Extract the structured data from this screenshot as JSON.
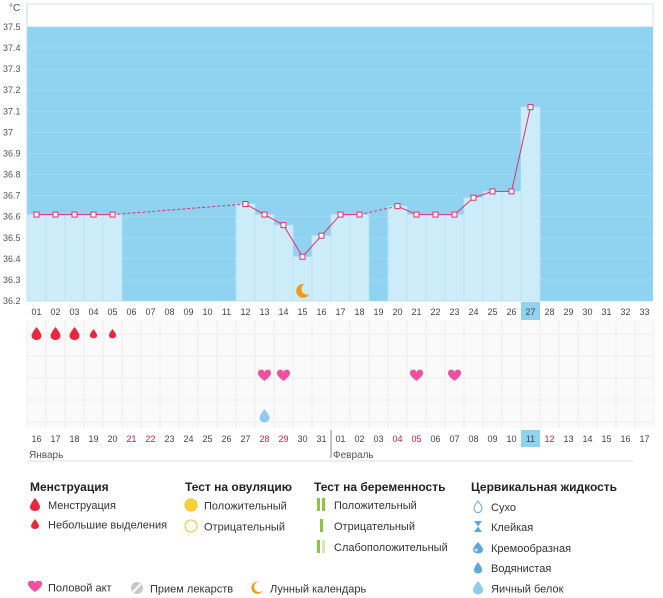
{
  "chart_data": {
    "type": "bar",
    "unit_label": "°C",
    "ylim": [
      36.2,
      37.5
    ],
    "yticks": [
      "36.2",
      "36.3",
      "36.4",
      "36.5",
      "36.6",
      "36.7",
      "36.8",
      "36.9",
      "37",
      "37.1",
      "37.2",
      "37.3",
      "37.4",
      "37.5"
    ],
    "cycle_days": [
      "01",
      "02",
      "03",
      "04",
      "05",
      "06",
      "07",
      "08",
      "09",
      "10",
      "11",
      "12",
      "13",
      "14",
      "15",
      "16",
      "17",
      "18",
      "19",
      "20",
      "21",
      "22",
      "23",
      "24",
      "25",
      "26",
      "27",
      "28",
      "29",
      "30",
      "31",
      "32",
      "33"
    ],
    "highlight_day": "27",
    "temperatures": [
      36.61,
      36.61,
      36.61,
      36.61,
      36.61,
      null,
      null,
      null,
      null,
      null,
      null,
      36.66,
      36.61,
      36.56,
      36.41,
      36.51,
      36.61,
      36.61,
      null,
      36.65,
      36.61,
      36.61,
      36.61,
      36.69,
      36.72,
      36.72,
      37.12,
      null,
      null,
      null,
      null,
      null,
      null
    ],
    "dates": [
      "16",
      "17",
      "18",
      "19",
      "20",
      "21",
      "22",
      "23",
      "24",
      "25",
      "26",
      "27",
      "28",
      "29",
      "30",
      "31",
      "01",
      "02",
      "03",
      "04",
      "05",
      "06",
      "07",
      "08",
      "09",
      "10",
      "11",
      "12",
      "13",
      "14",
      "15",
      "16",
      "17"
    ],
    "weekend_days": [
      5,
      6,
      12,
      13,
      19,
      20,
      26,
      27
    ],
    "today_index": 26,
    "month_labels": [
      {
        "index": 0,
        "label": "Январь"
      },
      {
        "index": 16,
        "label": "Февраль"
      }
    ],
    "menstruation_large": [
      0,
      1,
      2
    ],
    "menstruation_small": [
      3,
      4
    ],
    "intercourse": [
      12,
      13,
      20,
      22
    ],
    "egg_white": [
      12
    ],
    "lunar_day": 14
  },
  "legend": {
    "menstruation": {
      "title": "Менструация",
      "items": [
        "Менструация",
        "Небольшие выделения"
      ]
    },
    "ovulation": {
      "title": "Тест на овуляцию",
      "items": [
        "Положительный",
        "Отрицательный"
      ]
    },
    "pregnancy": {
      "title": "Тест на беременность",
      "items": [
        "Положительный",
        "Отрицательный",
        "Слабоположительный"
      ]
    },
    "cervical": {
      "title": "Цервикальная жидкость",
      "items": [
        "Сухо",
        "Клейкая",
        "Кремообразная",
        "Водянистая",
        "Яичный белок"
      ]
    },
    "bottom": [
      "Половой акт",
      "Прием лекарств",
      "Лунный календарь"
    ]
  },
  "colors": {
    "blue_bg": "#8fd3f0",
    "bar": "#ccecfa",
    "line": "#e0306a",
    "red": "#e8283c",
    "pink": "#f050a0",
    "orange": "#f29a12",
    "weekend": "#c81e3c",
    "today": "#8fd3f0"
  }
}
